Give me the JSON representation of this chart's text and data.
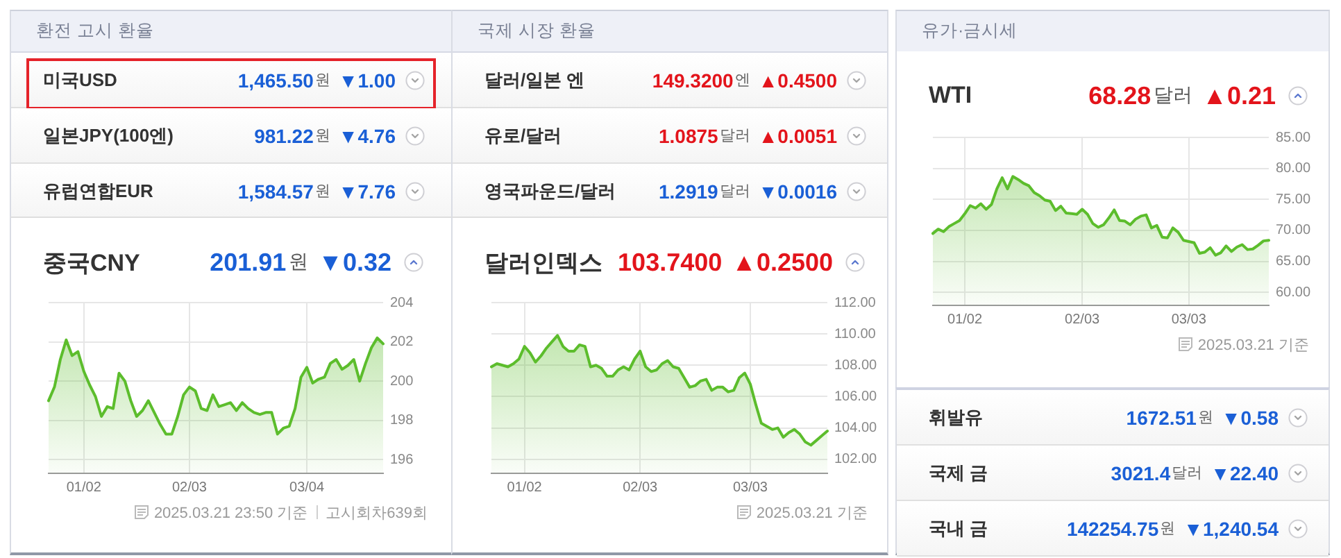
{
  "chart_data": [
    {
      "type": "other",
      "title": "환전 고시 환율",
      "annotations": [
        "미국USD",
        "1,465.50",
        "원",
        "▼1.00",
        "일본JPY(100엔)",
        "981.22",
        "원",
        "▼4.76",
        "유럽연합EUR",
        "1,584.57",
        "원",
        "▼7.76"
      ],
      "colors": [
        "#1a5fd6",
        "#1a5fd6",
        "#1a5fd6"
      ]
    },
    {
      "type": "other",
      "title": "중국CNY",
      "annotations": [
        "201.91",
        "원",
        "▼0.32"
      ],
      "colors": [
        "#1a5fd6"
      ]
    },
    {
      "type": "area",
      "categories": [
        null,
        null,
        null,
        null,
        null,
        null,
        "01/02",
        null,
        null,
        null,
        null,
        null,
        null,
        null,
        null,
        null,
        null,
        null,
        null,
        null,
        null,
        null,
        null,
        null,
        "02/03",
        null,
        null,
        null,
        null,
        null,
        null,
        null,
        null,
        null,
        null,
        null,
        null,
        null,
        null,
        null,
        null,
        null,
        null,
        null,
        "03/04",
        null,
        null,
        null,
        null,
        null,
        null,
        null,
        null,
        null,
        null,
        null,
        null,
        null
      ],
      "values": [
        199.0,
        199.7,
        201.1,
        202.1,
        201.3,
        201.5,
        200.5,
        199.8,
        199.2,
        198.2,
        198.7,
        198.6,
        200.4,
        200.0,
        199.0,
        198.2,
        198.5,
        199.0,
        198.4,
        197.8,
        197.3,
        197.3,
        198.2,
        199.3,
        199.7,
        199.5,
        198.6,
        198.5,
        199.3,
        198.7,
        198.8,
        198.9,
        198.5,
        198.9,
        198.6,
        198.4,
        198.3,
        198.4,
        198.4,
        197.3,
        197.6,
        197.7,
        198.6,
        200.2,
        200.7,
        199.9,
        200.1,
        200.2,
        200.9,
        201.1,
        200.6,
        200.8,
        201.1,
        200.0,
        200.9,
        201.7,
        202.2,
        201.9
      ],
      "color": "#5cbd2c",
      "ylim": [
        195.3,
        204
      ],
      "yticks": [
        196,
        198,
        200,
        202,
        204
      ],
      "grid": true,
      "marker": "none",
      "annotations": [
        "2025.03.21 23:50 기준",
        "고시회차639회"
      ]
    },
    {
      "type": "other",
      "title": "국제 시장 환율",
      "annotations": [
        "달러/일본 엔",
        "149.3200",
        "엔",
        "▲0.4500",
        "유로/달러",
        "1.0875",
        "달러",
        "▲0.0051",
        "영국파운드/달러",
        "1.2919",
        "달러",
        "▼0.0016"
      ],
      "colors": [
        "#e3141b",
        "#e3141b",
        "#1a5fd6"
      ]
    },
    {
      "type": "other",
      "title": "달러인덱스",
      "annotations": [
        "103.7400",
        "▲0.2500"
      ],
      "colors": [
        "#e3141b"
      ]
    },
    {
      "type": "area",
      "categories": [
        null,
        null,
        null,
        null,
        null,
        null,
        "01/02",
        null,
        null,
        null,
        null,
        null,
        null,
        null,
        null,
        null,
        null,
        null,
        null,
        null,
        null,
        null,
        null,
        null,
        null,
        null,
        null,
        "02/03",
        null,
        null,
        null,
        null,
        null,
        null,
        null,
        null,
        null,
        null,
        null,
        null,
        null,
        null,
        null,
        null,
        null,
        null,
        null,
        "03/03",
        null,
        null,
        null,
        null,
        null,
        null,
        null,
        null,
        null,
        null,
        null,
        null,
        null,
        null
      ],
      "values": [
        107.9,
        108.1,
        108.0,
        107.9,
        108.1,
        108.4,
        109.2,
        108.8,
        108.2,
        108.6,
        109.1,
        109.5,
        109.9,
        109.2,
        108.9,
        108.9,
        109.3,
        109.2,
        107.9,
        108.0,
        107.8,
        107.3,
        107.3,
        107.7,
        107.9,
        107.7,
        108.4,
        108.9,
        107.9,
        107.6,
        107.7,
        108.1,
        108.3,
        107.9,
        107.8,
        107.2,
        106.6,
        106.7,
        107.0,
        107.1,
        106.4,
        106.6,
        106.6,
        106.3,
        106.4,
        107.2,
        107.5,
        106.8,
        105.5,
        104.3,
        104.1,
        103.9,
        104.0,
        103.4,
        103.7,
        103.9,
        103.6,
        103.1,
        102.9,
        103.2,
        103.5,
        103.8
      ],
      "color": "#5cbd2c",
      "ylim": [
        101.1,
        112
      ],
      "yticks": [
        {
          "value": 102,
          "label": "102.00"
        },
        {
          "value": 104,
          "label": "104.00"
        },
        {
          "value": 106,
          "label": "106.00"
        },
        {
          "value": 108,
          "label": "108.00"
        },
        {
          "value": 110,
          "label": "110.00"
        },
        {
          "value": 112,
          "label": "112.00"
        }
      ],
      "grid": true,
      "marker": "none",
      "annotations": [
        "2025.03.21 기준"
      ]
    },
    {
      "type": "other",
      "title": "유가·금시세"
    },
    {
      "type": "other",
      "title": "WTI",
      "annotations": [
        "68.28",
        "달러",
        "▲0.21"
      ],
      "colors": [
        "#e3141b"
      ]
    },
    {
      "type": "area",
      "categories": [
        null,
        null,
        null,
        null,
        null,
        null,
        "01/02",
        null,
        null,
        null,
        null,
        null,
        null,
        null,
        null,
        null,
        null,
        null,
        null,
        null,
        null,
        null,
        null,
        null,
        null,
        null,
        null,
        null,
        "02/03",
        null,
        null,
        null,
        null,
        null,
        null,
        null,
        null,
        null,
        null,
        null,
        null,
        null,
        null,
        null,
        null,
        null,
        null,
        null,
        "03/03",
        null,
        null,
        null,
        null,
        null,
        null,
        null,
        null,
        null,
        null,
        null,
        null,
        null,
        null,
        null
      ],
      "values": [
        69.5,
        70.2,
        69.8,
        70.6,
        71.1,
        71.6,
        72.7,
        74.0,
        73.6,
        74.3,
        73.4,
        74.2,
        76.7,
        78.5,
        76.7,
        78.7,
        78.2,
        77.6,
        77.2,
        76.1,
        75.6,
        74.9,
        74.7,
        73.2,
        73.9,
        72.8,
        72.7,
        72.6,
        73.4,
        72.6,
        71.1,
        70.5,
        70.9,
        72.0,
        73.3,
        71.6,
        71.5,
        70.9,
        71.8,
        72.3,
        72.5,
        70.4,
        70.8,
        68.9,
        68.8,
        70.4,
        69.7,
        68.4,
        68.2,
        68.0,
        66.3,
        66.5,
        67.2,
        66.0,
        66.4,
        67.5,
        66.6,
        67.3,
        67.7,
        66.9,
        67.0,
        67.6,
        68.3,
        68.4
      ],
      "color": "#5cbd2c",
      "ylim": [
        57.9,
        85
      ],
      "yticks": [
        {
          "value": 60,
          "label": "60.00"
        },
        {
          "value": 65,
          "label": "65.00"
        },
        {
          "value": 70,
          "label": "70.00"
        },
        {
          "value": 75,
          "label": "75.00"
        },
        {
          "value": 80,
          "label": "80.00"
        },
        {
          "value": 85,
          "label": "85.00"
        }
      ],
      "grid": true,
      "marker": "none",
      "annotations": [
        "2025.03.21 기준"
      ]
    },
    {
      "type": "other",
      "annotations": [
        "휘발유",
        "1672.51",
        "원",
        "▼0.58",
        "국제 금",
        "3021.4",
        "달러",
        "▼22.40",
        "국내 금",
        "142254.75",
        "원",
        "▼1,240.54"
      ],
      "colors": [
        "#1a5fd6",
        "#1a5fd6",
        "#1a5fd6"
      ]
    }
  ]
}
